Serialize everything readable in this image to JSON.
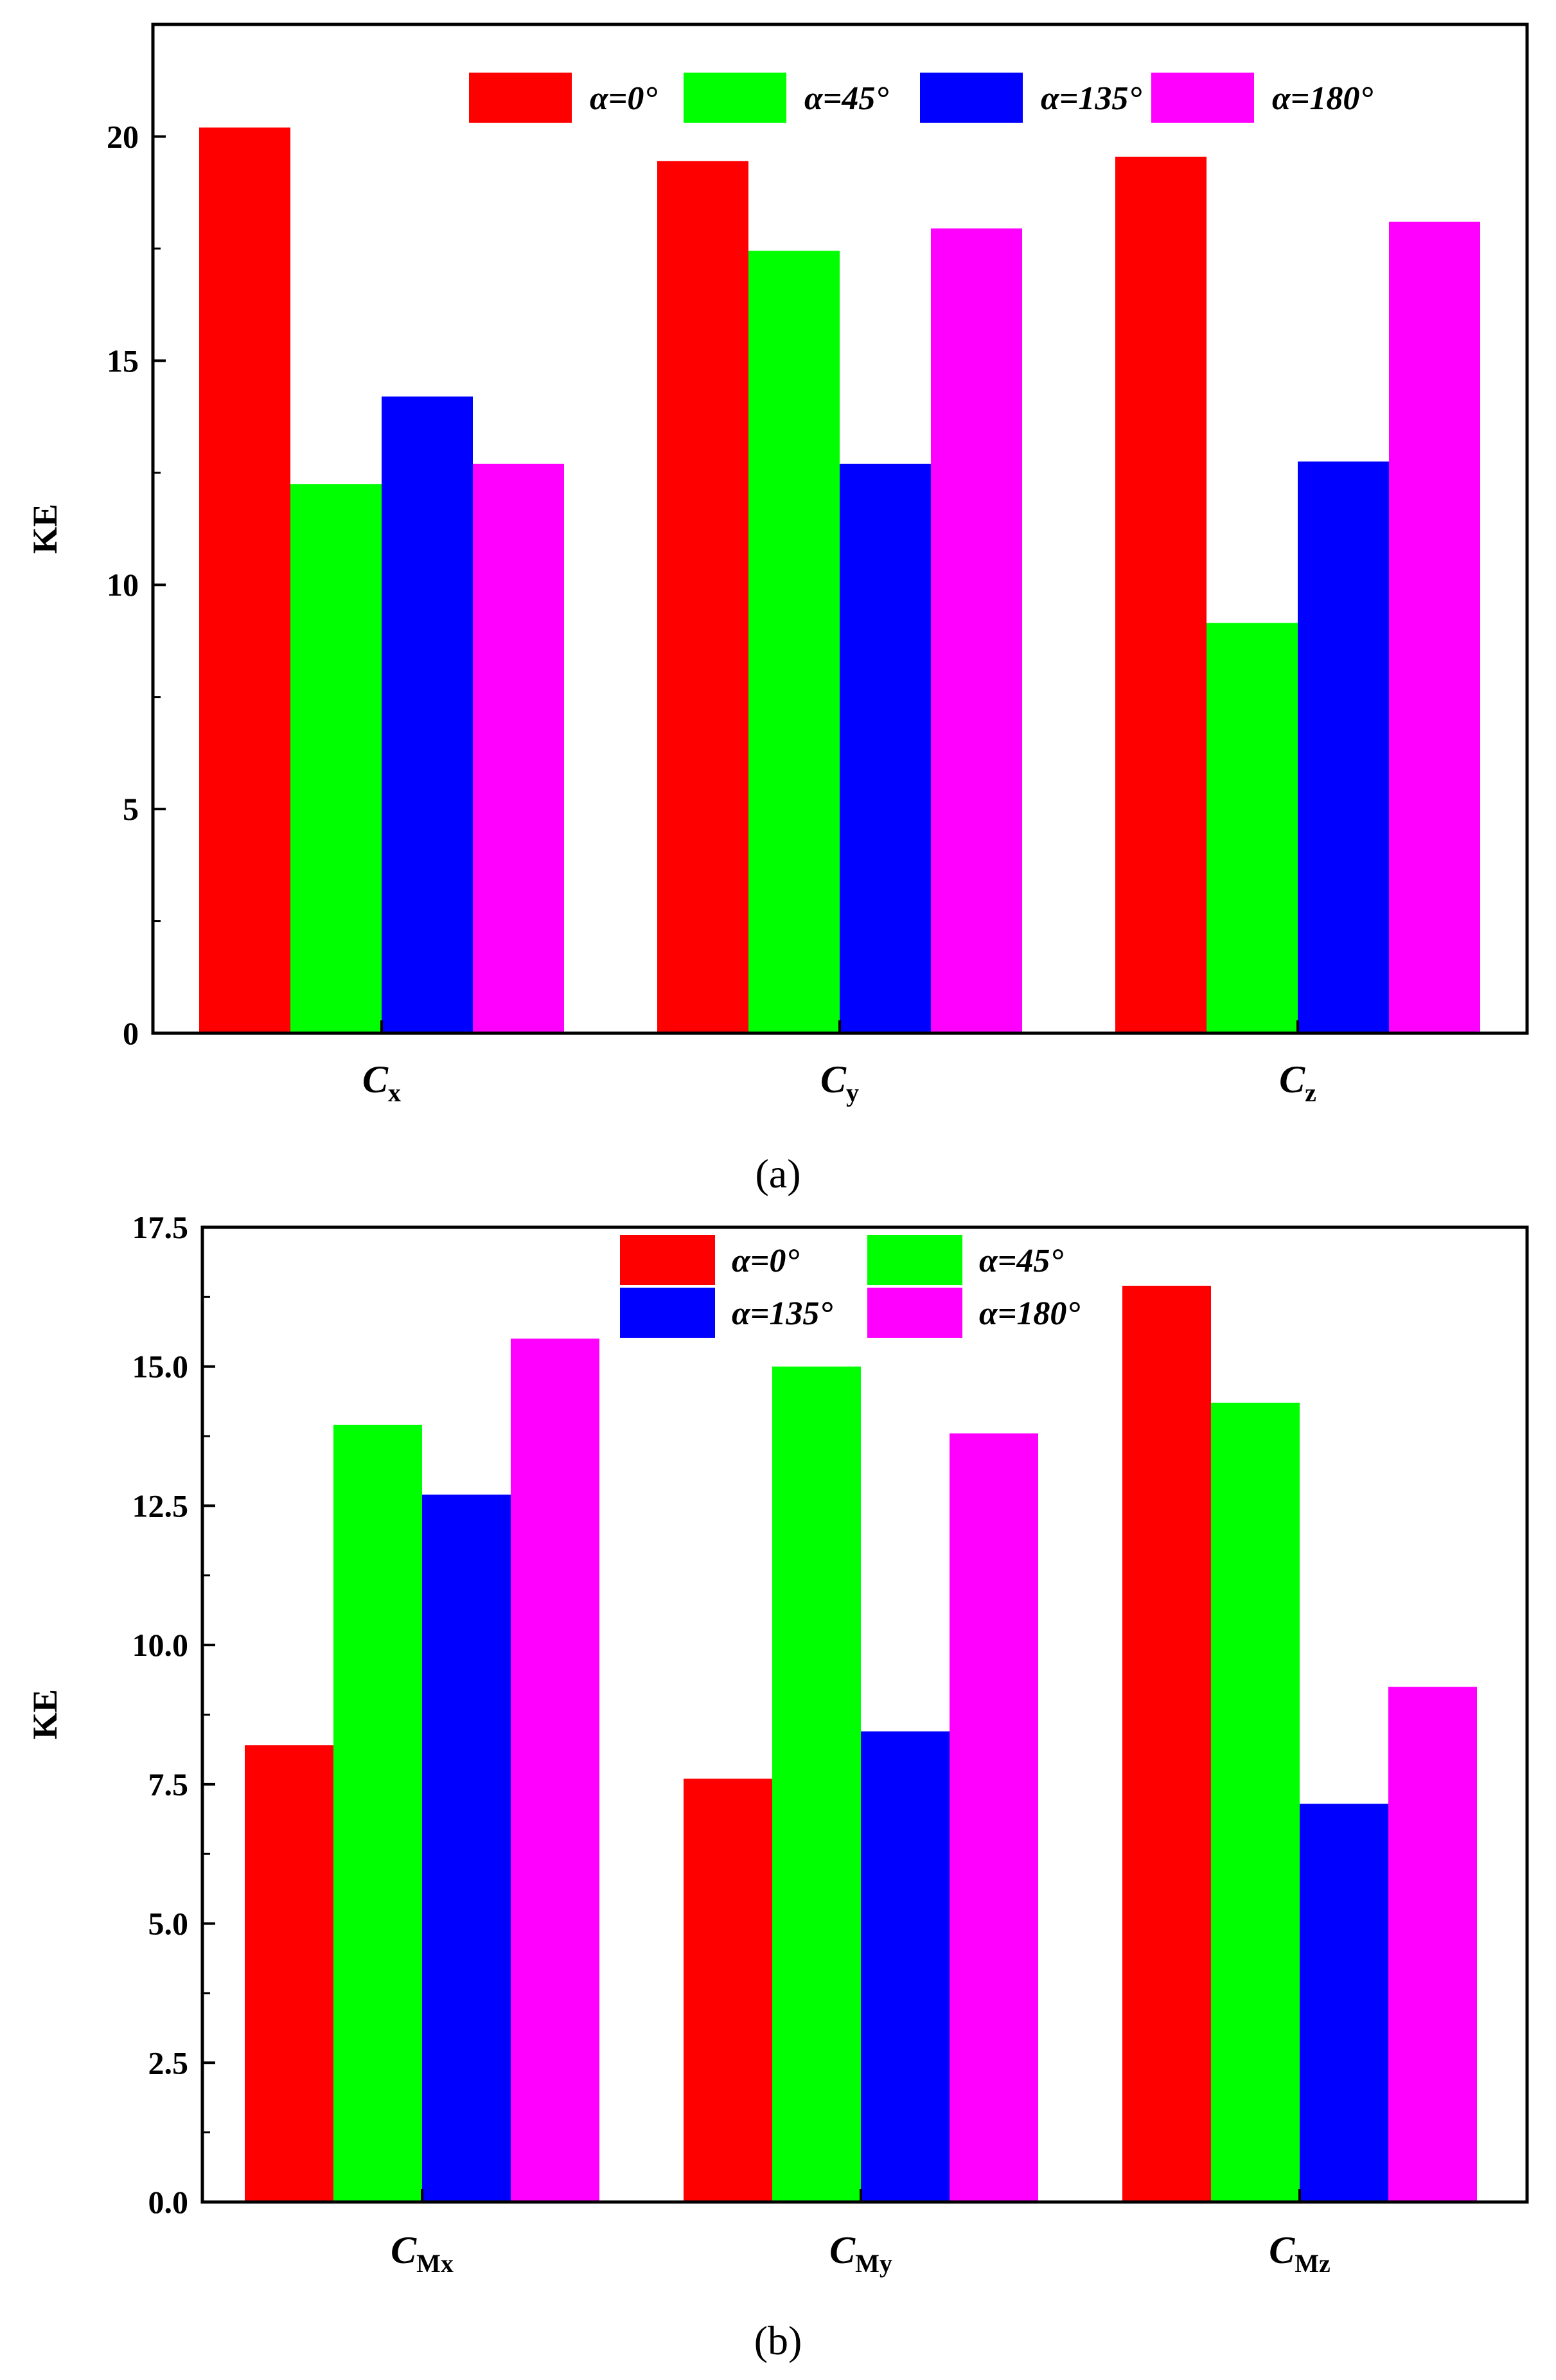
{
  "chart_data": [
    {
      "type": "bar",
      "panel_label": "(a)",
      "ylabel": "KE",
      "xlabel": "",
      "ylim": [
        0,
        22.5
      ],
      "y_ticks": [
        0,
        5,
        10,
        15,
        20
      ],
      "y_tick_labels": [
        "0",
        "5",
        "10",
        "15",
        "20"
      ],
      "categories": [
        {
          "main": "C",
          "sub": "x"
        },
        {
          "main": "C",
          "sub": "y"
        },
        {
          "main": "C",
          "sub": "z"
        }
      ],
      "series": [
        {
          "name": "α=0°",
          "color": "#ff0000",
          "values": [
            20.2,
            19.45,
            19.55
          ]
        },
        {
          "name": "α=45°",
          "color": "#00ff00",
          "values": [
            12.25,
            17.45,
            9.15
          ]
        },
        {
          "name": "α=135°",
          "color": "#0000ff",
          "values": [
            14.2,
            12.7,
            12.75
          ]
        },
        {
          "name": "α=180°",
          "color": "#ff00ff",
          "values": [
            12.7,
            17.95,
            18.1
          ]
        }
      ],
      "legend_position": "top-right",
      "grid": false
    },
    {
      "type": "bar",
      "panel_label": "(b)",
      "ylabel": "KE",
      "xlabel": "",
      "ylim": [
        0,
        17.5
      ],
      "y_ticks": [
        0,
        2.5,
        5,
        7.5,
        10,
        12.5,
        15,
        17.5
      ],
      "y_tick_labels": [
        "0.0",
        "2.5",
        "5.0",
        "7.5",
        "10.0",
        "12.5",
        "15.0",
        "17.5"
      ],
      "categories": [
        {
          "main": "C",
          "sub": "Mx"
        },
        {
          "main": "C",
          "sub": "My"
        },
        {
          "main": "C",
          "sub": "Mz"
        }
      ],
      "series": [
        {
          "name": "α=0°",
          "color": "#ff0000",
          "values": [
            8.2,
            7.6,
            16.45
          ]
        },
        {
          "name": "α=45°",
          "color": "#00ff00",
          "values": [
            13.95,
            15.0,
            14.35
          ]
        },
        {
          "name": "α=135°",
          "color": "#0000ff",
          "values": [
            12.7,
            8.45,
            7.15
          ]
        },
        {
          "name": "α=180°",
          "color": "#ff00ff",
          "values": [
            15.5,
            13.8,
            9.25
          ]
        }
      ],
      "legend_position": "top-center",
      "grid": false
    }
  ]
}
